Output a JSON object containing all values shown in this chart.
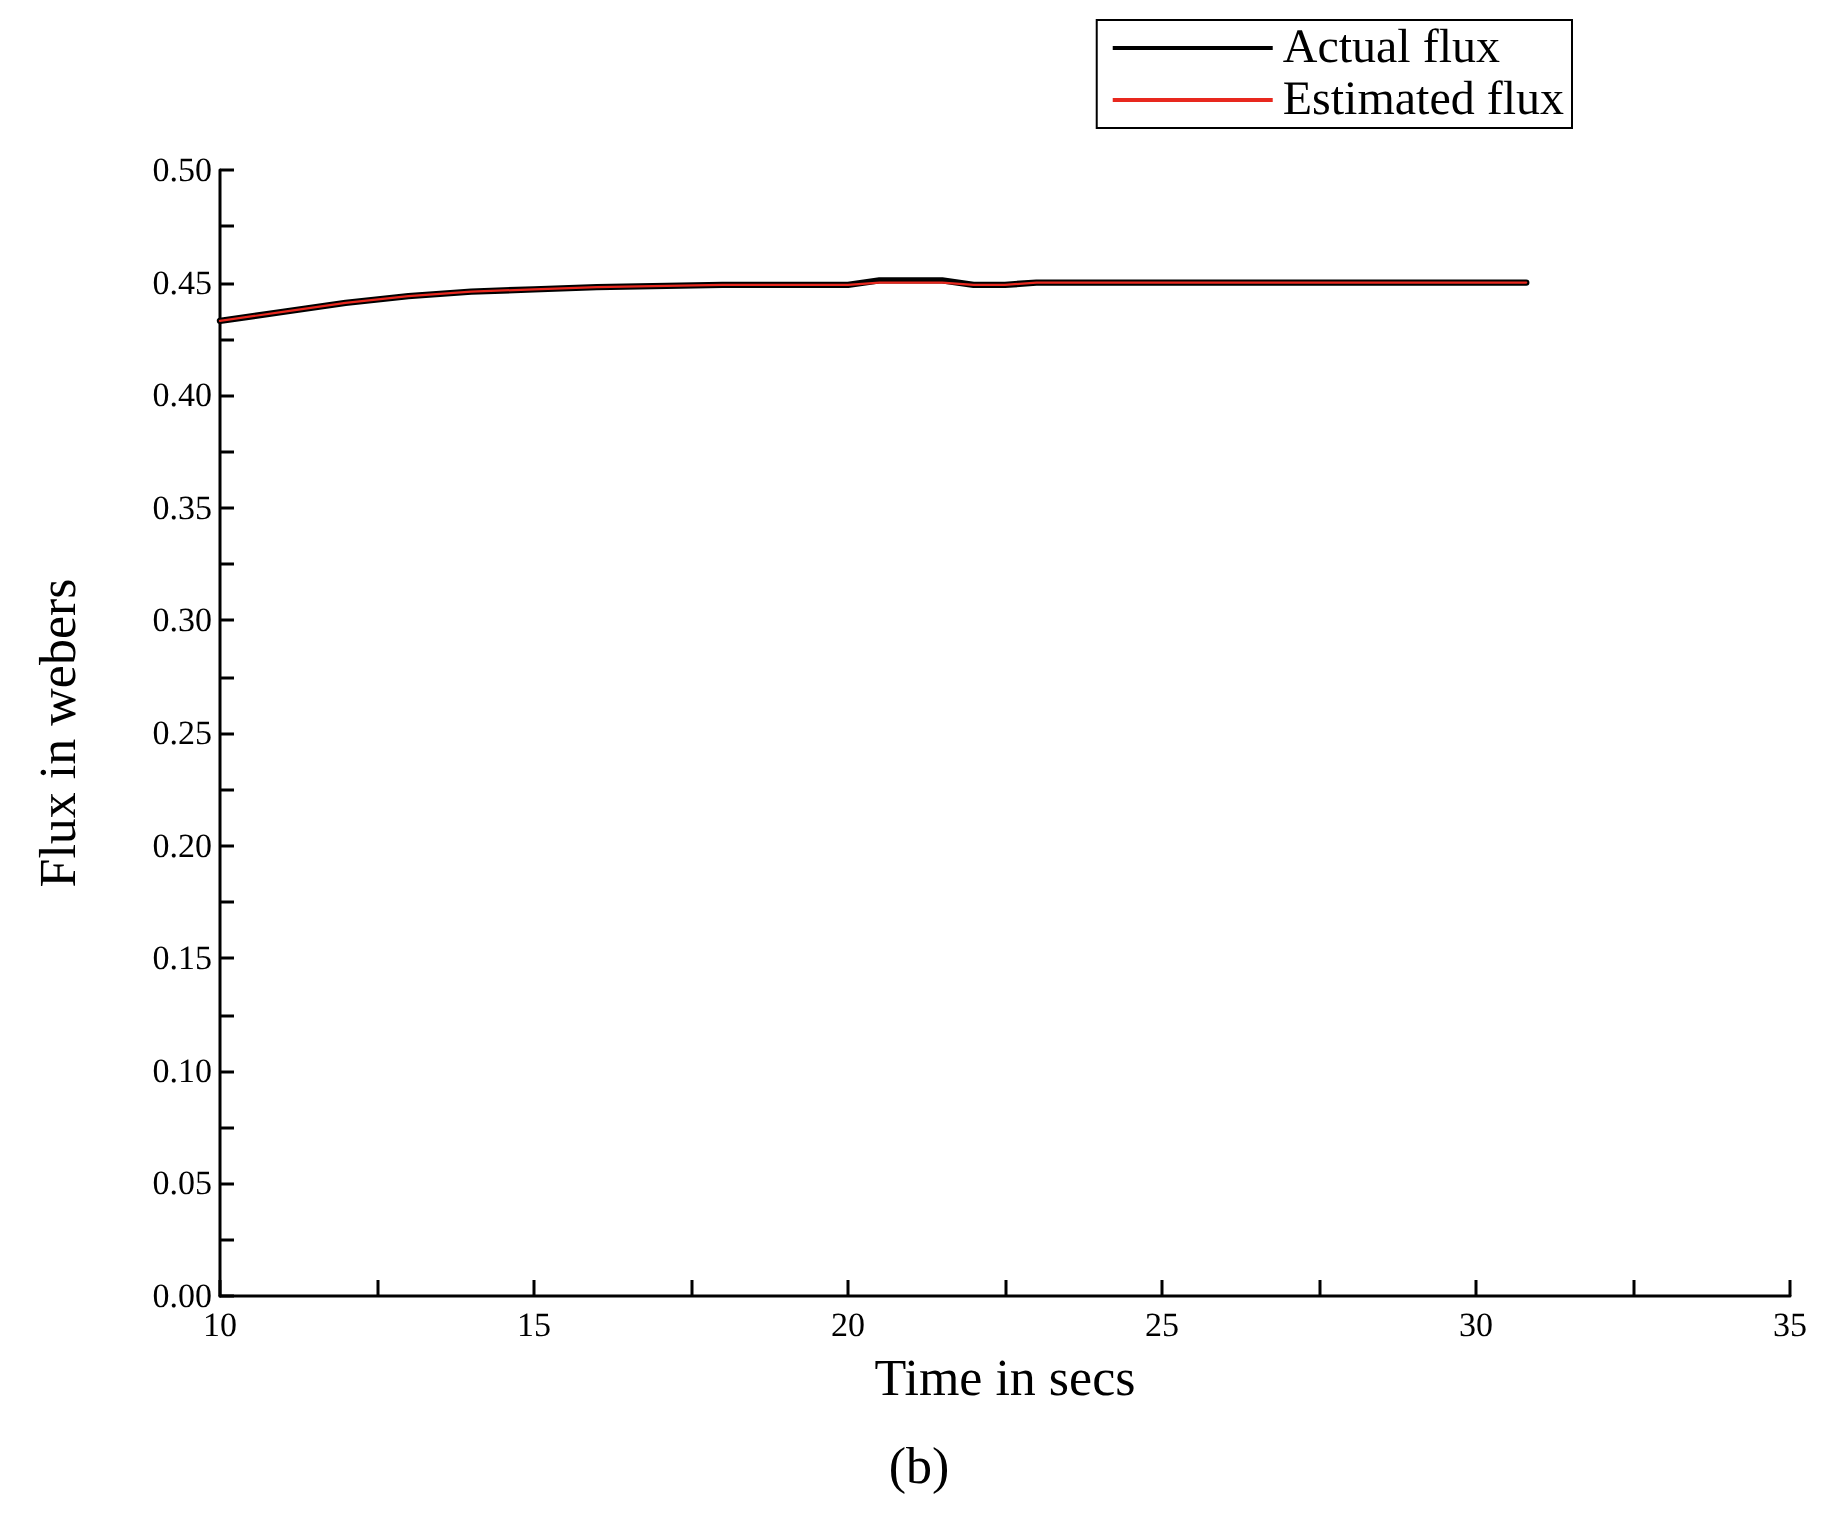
{
  "chart_data": {
    "type": "line",
    "xlabel": "Time in secs",
    "ylabel": "Flux in webers",
    "annotations": [
      "(b)"
    ],
    "series": [
      {
        "name": "Actual flux",
        "color": "#000000",
        "x": [
          10,
          11,
          12,
          13,
          14,
          15,
          16,
          18,
          20,
          20.5,
          21.5,
          22,
          22.5,
          23,
          25,
          28,
          30.8
        ],
        "values": [
          0.433,
          0.437,
          0.441,
          0.444,
          0.446,
          0.447,
          0.448,
          0.449,
          0.449,
          0.451,
          0.451,
          0.449,
          0.449,
          0.45,
          0.45,
          0.45,
          0.45
        ]
      },
      {
        "name": "Estimated flux",
        "color": "#e8281e",
        "x": [
          10,
          11,
          12,
          13,
          14,
          15,
          16,
          18,
          20,
          20.5,
          21.5,
          22,
          22.5,
          23,
          25,
          28,
          30.8
        ],
        "values": [
          0.433,
          0.437,
          0.441,
          0.444,
          0.446,
          0.447,
          0.448,
          0.449,
          0.449,
          0.45,
          0.45,
          0.449,
          0.449,
          0.45,
          0.45,
          0.45,
          0.45
        ]
      }
    ],
    "xlim": [
      10,
      35
    ],
    "xticks": [
      10,
      {
        "value": 12.5,
        "label": null
      },
      15,
      {
        "value": 17.5,
        "label": null
      },
      20,
      {
        "value": 22.5,
        "label": null
      },
      25,
      {
        "value": 27.5,
        "label": null
      },
      30,
      {
        "value": 32.5,
        "label": null
      },
      35
    ],
    "ylim": [
      0,
      0.5
    ],
    "yticks": [
      {
        "value": 0,
        "label": "0.00"
      },
      {
        "value": 0.025,
        "label": null
      },
      {
        "value": 0.05,
        "label": "0.05"
      },
      {
        "value": 0.075,
        "label": null
      },
      {
        "value": 0.1,
        "label": "0.10"
      },
      {
        "value": 0.125,
        "label": null
      },
      {
        "value": 0.15,
        "label": "0.15"
      },
      {
        "value": 0.175,
        "label": null
      },
      {
        "value": 0.2,
        "label": "0.20"
      },
      {
        "value": 0.225,
        "label": null
      },
      {
        "value": 0.25,
        "label": "0.25"
      },
      {
        "value": 0.275,
        "label": null
      },
      {
        "value": 0.3,
        "label": "0.30"
      },
      {
        "value": 0.325,
        "label": null
      },
      {
        "value": 0.35,
        "label": "0.35"
      },
      {
        "value": 0.375,
        "label": null
      },
      {
        "value": 0.4,
        "label": "0.40"
      },
      {
        "value": 0.425,
        "label": null
      },
      {
        "value": 0.45,
        "label": "0.45"
      },
      {
        "value": 0.475,
        "label": null
      },
      {
        "value": 0.5,
        "label": "0.50"
      }
    ],
    "grid": false,
    "legend": "top right",
    "marker": "none",
    "line_style": "solid"
  }
}
